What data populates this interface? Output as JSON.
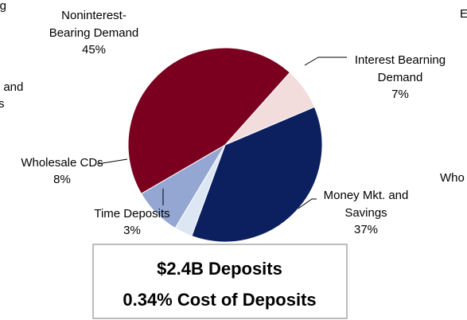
{
  "chart_data": {
    "type": "pie",
    "categories": [
      [
        "Interest Bearning",
        "Demand"
      ],
      [
        "Money Mkt. and",
        "Savings"
      ],
      [
        "Time  Deposits"
      ],
      [
        "Wholesale CDs"
      ],
      [
        "Noninterest-",
        "Bearing Demand"
      ]
    ],
    "values": [
      7,
      37,
      3,
      8,
      45
    ],
    "value_labels": [
      "7%",
      "37%",
      "3%",
      "8%",
      "45%"
    ],
    "colors": [
      "#f2dcdc",
      "#0c1f5e",
      "#dde6f3",
      "#93a7d2",
      "#7b0020"
    ],
    "summary": [
      "$2.4B Deposits",
      "0.34% Cost of Deposits"
    ],
    "fragments": [
      "g",
      ". and",
      "s",
      "E",
      "Who"
    ]
  }
}
